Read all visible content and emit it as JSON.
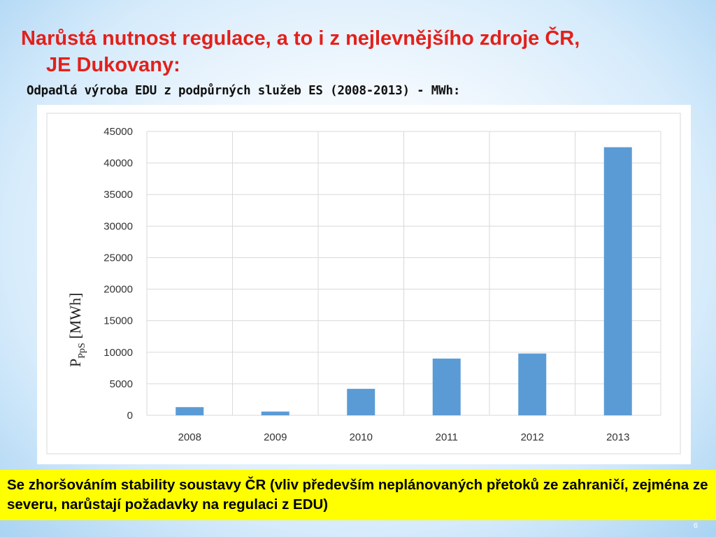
{
  "slide": {
    "title_line1": "Narůstá nutnost regulace, a to i z nejlevnějšího zdroje ČR,",
    "title_line2": "JE Dukovany:",
    "subtitle": "Odpadlá výroba EDU z podpůrných služeb ES (2008-2013) - MWh:",
    "bottom_text": "Se zhoršováním stability soustavy ČR (vliv především neplánovaných přetoků ze zahraničí, zejména ze severu, narůstají požadavky na regulaci z EDU)",
    "page_number": "6"
  },
  "colors": {
    "title": "#e3201b",
    "bar": "#5b9bd5",
    "highlight_box": "#ffff00"
  },
  "chart_data": {
    "type": "bar",
    "categories": [
      "2008",
      "2009",
      "2010",
      "2011",
      "2012",
      "2013"
    ],
    "values": [
      1300,
      600,
      4200,
      9000,
      9800,
      42500
    ],
    "ylabel_main": "P",
    "ylabel_sub": "PpS",
    "ylabel_unit": " [MWh]",
    "ylim": [
      0,
      45000
    ],
    "yticks": [
      "0",
      "5000",
      "10000",
      "15000",
      "20000",
      "25000",
      "30000",
      "35000",
      "40000",
      "45000"
    ],
    "grid": true,
    "legend": "none"
  }
}
